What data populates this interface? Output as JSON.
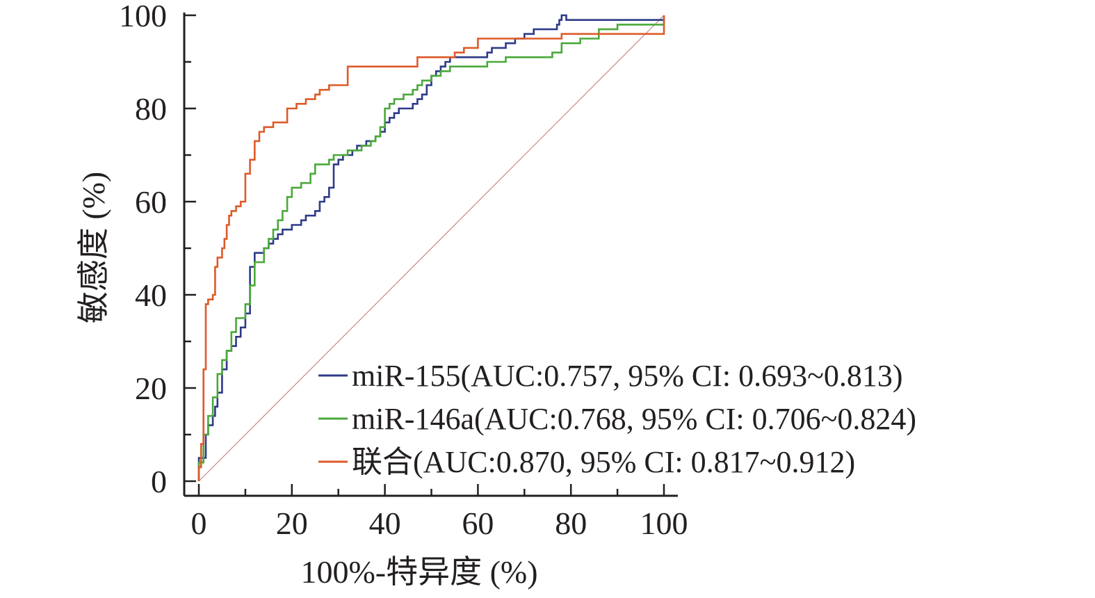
{
  "chart_data": {
    "type": "line",
    "title": "",
    "xlabel": "100%-特异度 (%)",
    "ylabel": "敏感度 (%)",
    "xlim": [
      0,
      100
    ],
    "ylim": [
      0,
      100
    ],
    "x_ticks": [
      "0",
      "20",
      "40",
      "60",
      "80",
      "100"
    ],
    "y_ticks": [
      "0",
      "20",
      "40",
      "60",
      "80",
      "100"
    ],
    "grid": false,
    "legend_position": "bottom-right",
    "reference_line": {
      "x": [
        0,
        100
      ],
      "y": [
        0,
        100
      ],
      "color": "#c9878a"
    },
    "series": [
      {
        "name": "miR-155(AUC:0.757, 95% CI: 0.693~0.813)",
        "color": "#2e3a87",
        "x": [
          0,
          0,
          1.5,
          1.5,
          2,
          2,
          3,
          3,
          3.5,
          3.5,
          4,
          4,
          5,
          5,
          6,
          6,
          7,
          7,
          8,
          8,
          9,
          9,
          10,
          10,
          11,
          11,
          12,
          12,
          14,
          14,
          15,
          15,
          16,
          16,
          17,
          17,
          18,
          18,
          20,
          20,
          22,
          22,
          23,
          23,
          25,
          25,
          26,
          26,
          27,
          27,
          28,
          28,
          29,
          29,
          30,
          30,
          31,
          31,
          33,
          33,
          34,
          34,
          36,
          36,
          38,
          38,
          39,
          39,
          40,
          40,
          41,
          41,
          42,
          42,
          43,
          43,
          46,
          46,
          47,
          47,
          48,
          48,
          49,
          49,
          50,
          50,
          51,
          51,
          52,
          52,
          53,
          53,
          54,
          54,
          62,
          62,
          63,
          63,
          66,
          66,
          68,
          68,
          70,
          70,
          72,
          72,
          77,
          77,
          77.5,
          77.5,
          78,
          78,
          79,
          79,
          100
        ],
        "y": [
          0,
          5,
          5,
          10,
          10,
          12,
          12,
          14,
          14,
          16,
          16,
          19,
          19,
          24,
          24,
          28,
          28,
          29,
          29,
          31,
          31,
          33,
          33,
          36,
          36,
          46,
          46,
          49,
          49,
          50,
          50,
          51,
          51,
          52,
          52,
          53,
          53,
          54,
          54,
          55,
          55,
          56,
          56,
          57,
          57,
          58,
          58,
          60,
          60,
          61,
          61,
          63,
          63,
          68,
          68,
          69,
          69,
          70,
          70,
          71,
          71,
          72,
          72,
          73,
          73,
          74,
          74,
          75,
          75,
          77,
          77,
          78,
          78,
          79,
          79,
          80,
          80,
          81,
          81,
          82,
          82,
          83,
          83,
          85,
          85,
          87,
          87,
          88,
          88,
          89,
          89,
          90,
          90,
          91,
          91,
          92,
          92,
          93,
          93,
          94,
          94,
          95,
          95,
          96,
          96,
          97,
          97,
          98,
          98,
          99,
          99,
          100,
          100,
          99,
          99
        ]
      },
      {
        "name": "miR-146a(AUC:0.768, 95% CI: 0.706~0.824)",
        "color": "#4aa83a",
        "x": [
          0,
          0,
          1,
          1,
          2,
          2,
          3,
          3,
          4,
          4,
          5,
          5,
          6,
          6,
          7,
          7,
          8,
          8,
          10,
          10,
          11,
          11,
          12,
          12,
          14,
          14,
          15,
          15,
          16,
          16,
          17,
          17,
          18,
          18,
          19,
          19,
          20,
          20,
          22,
          22,
          24,
          24,
          25,
          25,
          28,
          28,
          29,
          29,
          32,
          32,
          35,
          35,
          37,
          37,
          38,
          38,
          39,
          39,
          40,
          40,
          41,
          41,
          42,
          42,
          44,
          44,
          46,
          46,
          47,
          47,
          48,
          48,
          50,
          50,
          52,
          52,
          54,
          54,
          62,
          62,
          66,
          66,
          70,
          70,
          72,
          72,
          74,
          74,
          76,
          76,
          78,
          78,
          82,
          82,
          86,
          86,
          90,
          90,
          100,
          100
        ],
        "y": [
          0,
          4,
          4,
          10,
          10,
          14,
          14,
          18,
          18,
          23,
          23,
          26,
          26,
          28,
          28,
          32,
          32,
          35,
          35,
          38,
          38,
          42,
          42,
          47,
          47,
          50,
          50,
          52,
          52,
          54,
          54,
          56,
          56,
          58,
          58,
          61,
          61,
          63,
          63,
          64,
          64,
          66,
          66,
          68,
          68,
          69,
          69,
          70,
          70,
          71,
          71,
          72,
          72,
          73,
          73,
          74,
          74,
          76,
          76,
          80,
          80,
          81,
          81,
          82,
          82,
          83,
          83,
          84,
          84,
          85,
          85,
          86,
          86,
          87,
          87,
          88,
          88,
          89,
          89,
          90,
          90,
          91,
          91,
          91,
          91,
          91,
          91,
          91,
          91,
          92,
          92,
          94,
          94,
          95,
          95,
          97,
          97,
          98,
          98,
          100
        ]
      },
      {
        "name": "联合(AUC:0.870, 95% CI: 0.817~0.912)",
        "color": "#dd5a28",
        "x": [
          0,
          0,
          0.5,
          0.5,
          1,
          1,
          1.5,
          1.5,
          2,
          2,
          3,
          3,
          3.5,
          3.5,
          4,
          4,
          5,
          5,
          5.5,
          5.5,
          6,
          6,
          6.5,
          6.5,
          7,
          7,
          8,
          8,
          9,
          9,
          10,
          10,
          11,
          11,
          12,
          12,
          13,
          13,
          14,
          14,
          16,
          16,
          19,
          19,
          21,
          21,
          23,
          23,
          25,
          25,
          26,
          26,
          28,
          28,
          32,
          32,
          47,
          47,
          55,
          55,
          57,
          57,
          60,
          60,
          78,
          78,
          100,
          100
        ],
        "y": [
          0,
          3,
          3,
          8,
          8,
          24,
          24,
          38,
          38,
          39,
          39,
          40,
          40,
          46,
          46,
          48,
          48,
          50,
          50,
          52,
          52,
          55,
          55,
          57,
          57,
          58,
          58,
          59,
          59,
          60,
          60,
          66,
          66,
          69,
          69,
          73,
          73,
          75,
          75,
          76,
          76,
          77,
          77,
          80,
          80,
          81,
          81,
          82,
          82,
          83,
          83,
          84,
          84,
          85,
          85,
          89,
          89,
          91,
          91,
          92,
          92,
          93,
          93,
          95,
          95,
          96,
          96,
          100
        ]
      }
    ]
  }
}
